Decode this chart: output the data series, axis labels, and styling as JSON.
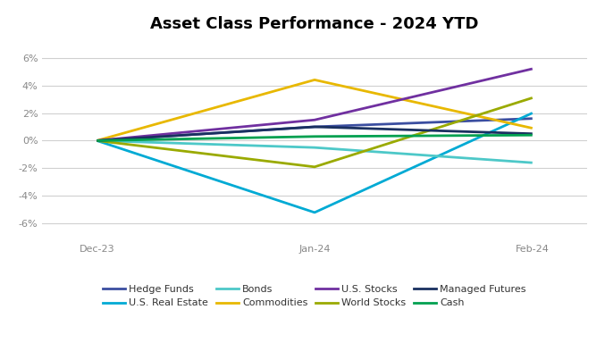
{
  "title": "Asset Class Performance - 2024 YTD",
  "x_labels": [
    "Dec-23",
    "Jan-24",
    "Feb-24"
  ],
  "x_positions": [
    0,
    1,
    2
  ],
  "ylim": [
    -0.072,
    0.072
  ],
  "yticks": [
    -0.06,
    -0.04,
    -0.02,
    0.0,
    0.02,
    0.04,
    0.06
  ],
  "series": [
    {
      "name": "Hedge Funds",
      "color": "#3b4ea0",
      "values": [
        0.0,
        0.01,
        0.016
      ]
    },
    {
      "name": "U.S. Real Estate",
      "color": "#00aad4",
      "values": [
        0.0,
        -0.052,
        0.02
      ]
    },
    {
      "name": "Bonds",
      "color": "#4dc8c8",
      "values": [
        0.0,
        -0.005,
        -0.016
      ]
    },
    {
      "name": "Commodities",
      "color": "#e8b800",
      "values": [
        0.0,
        0.044,
        0.009
      ]
    },
    {
      "name": "U.S. Stocks",
      "color": "#7030a0",
      "values": [
        0.0,
        0.015,
        0.052
      ]
    },
    {
      "name": "World Stocks",
      "color": "#9aaa00",
      "values": [
        0.0,
        -0.019,
        0.031
      ]
    },
    {
      "name": "Managed Futures",
      "color": "#1a3060",
      "values": [
        0.0,
        0.01,
        0.005
      ]
    },
    {
      "name": "Cash",
      "color": "#00a050",
      "values": [
        0.0,
        0.003,
        0.004
      ]
    }
  ],
  "legend_order": [
    0,
    1,
    2,
    3,
    4,
    5,
    6,
    7
  ],
  "background_color": "#ffffff",
  "grid_color": "#d0d0d0",
  "title_fontsize": 13,
  "tick_fontsize": 8,
  "legend_fontsize": 8
}
